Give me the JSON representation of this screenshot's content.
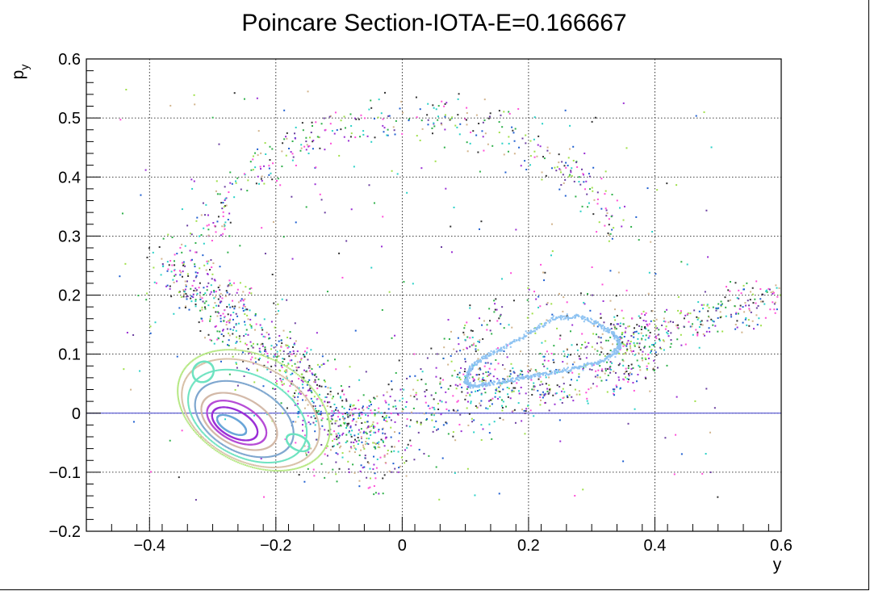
{
  "chart_data": {
    "type": "scatter",
    "title": "Poincare Section-IOTA-E=0.166667",
    "xlabel": "y",
    "ylabel": {
      "base": "p",
      "sub": "y"
    },
    "xlim": [
      -0.5,
      0.6
    ],
    "ylim": [
      -0.2,
      0.6
    ],
    "x_ticks": [
      -0.4,
      -0.2,
      0,
      0.2,
      0.4,
      0.6
    ],
    "x_tick_labels": [
      "−0.4",
      "−0.2",
      "0",
      "0.2",
      "0.4",
      "0.6"
    ],
    "y_ticks": [
      -0.2,
      -0.1,
      0,
      0.1,
      0.2,
      0.3,
      0.4,
      0.5,
      0.6
    ],
    "y_tick_labels": [
      "−0.2",
      "−0.1",
      "0",
      "0.1",
      "0.2",
      "0.3",
      "0.4",
      "0.5",
      "0.6"
    ],
    "grid": true,
    "reference_line": {
      "y": 0,
      "color": "#3a3acc"
    },
    "point_colors": [
      "#9a2fd4",
      "#2fb04a",
      "#333333",
      "#ff4fd8",
      "#1f5fd0",
      "#9fe04a",
      "#d2b48c",
      "#2ad1c7",
      "#6b3fa0"
    ],
    "closed_orbits": [
      {
        "center": [
          -0.27,
          -0.02
        ],
        "rx": 0.026,
        "ry": 0.012,
        "color": "#6aa6d8"
      },
      {
        "center": [
          -0.265,
          -0.018
        ],
        "rx": 0.04,
        "ry": 0.022,
        "color": "#9b2fd6"
      },
      {
        "center": [
          -0.262,
          -0.016
        ],
        "rx": 0.052,
        "ry": 0.03,
        "color": "#b64cd6"
      },
      {
        "center": [
          -0.258,
          -0.014
        ],
        "rx": 0.066,
        "ry": 0.04,
        "color": "#d3b9a8"
      },
      {
        "center": [
          -0.25,
          -0.01
        ],
        "rx": 0.085,
        "ry": 0.055,
        "color": "#7fa7cf"
      },
      {
        "center": [
          -0.245,
          -0.005
        ],
        "rx": 0.102,
        "ry": 0.068,
        "color": "#6fe3c1"
      },
      {
        "center": [
          -0.24,
          0.0
        ],
        "rx": 0.118,
        "ry": 0.08,
        "color": "#d8c1a8"
      },
      {
        "center": [
          -0.235,
          0.005
        ],
        "rx": 0.13,
        "ry": 0.09,
        "color": "#b6e884"
      }
    ],
    "islands": [
      {
        "center": [
          -0.315,
          0.07
        ],
        "rx": 0.016,
        "ry": 0.018,
        "color": "#6fe3c1"
      },
      {
        "center": [
          -0.165,
          -0.05
        ],
        "rx": 0.02,
        "ry": 0.012,
        "color": "#6fe3c1"
      }
    ],
    "open_orbit": {
      "color": "#8ec3f2",
      "points": [
        [
          0.1,
          0.055
        ],
        [
          0.11,
          0.08
        ],
        [
          0.13,
          0.095
        ],
        [
          0.16,
          0.11
        ],
        [
          0.2,
          0.135
        ],
        [
          0.24,
          0.16
        ],
        [
          0.28,
          0.165
        ],
        [
          0.31,
          0.15
        ],
        [
          0.335,
          0.135
        ],
        [
          0.345,
          0.115
        ],
        [
          0.335,
          0.1
        ],
        [
          0.31,
          0.085
        ],
        [
          0.27,
          0.075
        ],
        [
          0.23,
          0.068
        ],
        [
          0.2,
          0.062
        ],
        [
          0.17,
          0.055
        ],
        [
          0.135,
          0.05
        ],
        [
          0.11,
          0.045
        ],
        [
          0.1,
          0.055
        ]
      ]
    },
    "chaotic_sea": {
      "n_points": 2600
    }
  }
}
